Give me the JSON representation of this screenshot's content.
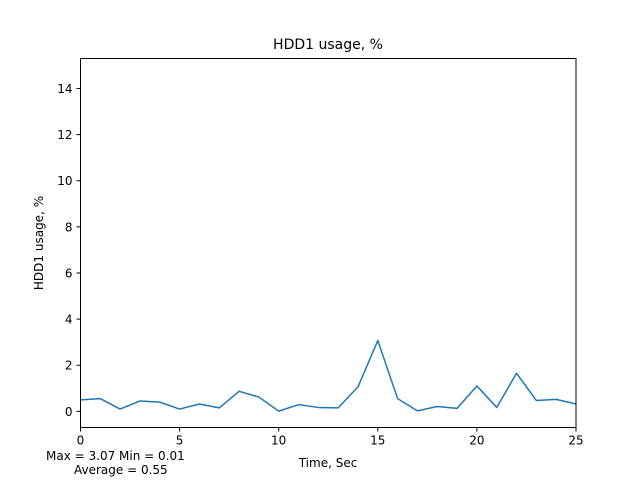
{
  "chart_data": {
    "type": "line",
    "title": "HDD1 usage, %",
    "xlabel": "Time, Sec",
    "ylabel": "HDD1 usage, %",
    "xlim": [
      0,
      25
    ],
    "ylim": [
      -0.7,
      15.3
    ],
    "xticks": [
      0,
      5,
      10,
      15,
      20,
      25
    ],
    "yticks": [
      0,
      2,
      4,
      6,
      8,
      10,
      12,
      14
    ],
    "grid": false,
    "series": [
      {
        "color": "#1f77b4",
        "x": [
          0,
          1,
          2,
          3,
          4,
          5,
          6,
          7,
          8,
          9,
          10,
          11,
          12,
          13,
          14,
          15,
          16,
          17,
          18,
          19,
          20,
          21,
          22,
          23,
          24,
          25
        ],
        "y": [
          0.5,
          0.55,
          0.1,
          0.45,
          0.4,
          0.1,
          0.32,
          0.15,
          0.87,
          0.62,
          0.01,
          0.29,
          0.17,
          0.15,
          1.06,
          3.07,
          0.55,
          0.02,
          0.21,
          0.13,
          1.1,
          0.17,
          1.65,
          0.47,
          0.52,
          0.32
        ]
      }
    ]
  },
  "stats": {
    "line1": "Max = 3.07  Min = 0.01",
    "line2": "Average = 0.55"
  }
}
